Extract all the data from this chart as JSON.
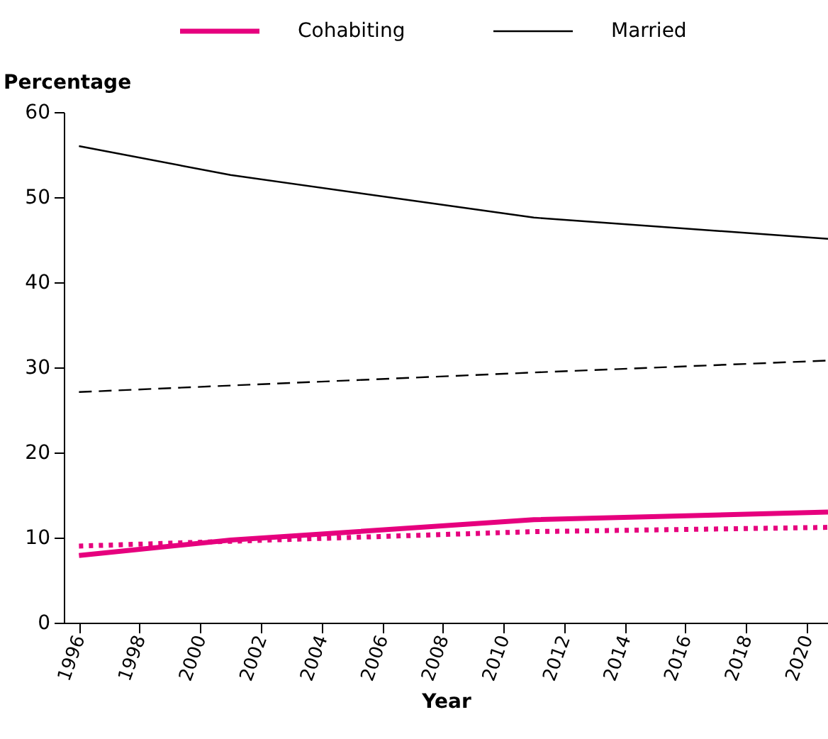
{
  "chart_data": {
    "type": "line",
    "xlabel": "Year",
    "ylabel": "Percentage",
    "xlim": [
      1995.5,
      2020.7
    ],
    "xticks": [
      1996,
      1998,
      2000,
      2002,
      2004,
      2006,
      2008,
      2010,
      2012,
      2014,
      2016,
      2018,
      2020
    ],
    "ylim": [
      0,
      60
    ],
    "yticks": [
      0,
      10,
      20,
      30,
      40,
      50,
      60
    ],
    "grid": false,
    "legend": "top",
    "marker": "none",
    "series": [
      {
        "name": "Cohabiting",
        "color": "#e6007e",
        "line_style": "solid",
        "x": [
          1996,
          2001,
          2011,
          2020.7
        ],
        "values": [
          7.9,
          9.7,
          12.1,
          13.0
        ]
      },
      {
        "name": "Married",
        "color": "#000000",
        "line_style": "solid",
        "x": [
          1996,
          2001,
          2011,
          2020.7
        ],
        "values": [
          56.0,
          52.6,
          47.6,
          45.1
        ]
      },
      {
        "color": "#000000",
        "line_style": "dashed",
        "x": [
          1996,
          2011,
          2020.7
        ],
        "values": [
          27.1,
          29.4,
          30.8
        ]
      },
      {
        "color": "#e6007e",
        "line_style": "dotted",
        "x": [
          1996,
          2011,
          2020.7
        ],
        "values": [
          9.0,
          10.7,
          11.2
        ]
      }
    ]
  }
}
